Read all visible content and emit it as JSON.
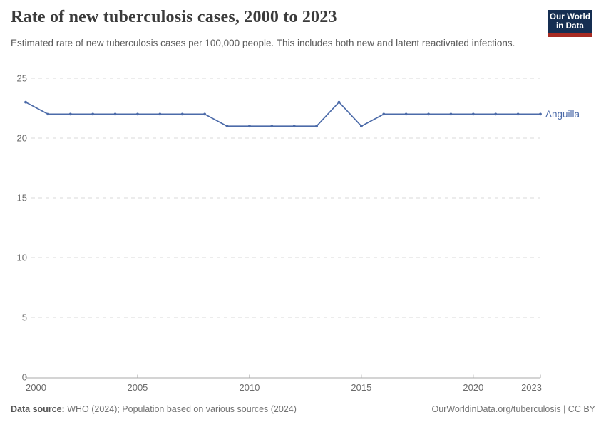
{
  "header": {
    "title": "Rate of new tuberculosis cases, 2000 to 2023",
    "subtitle": "Estimated rate of new tuberculosis cases per 100,000 people. This includes both new and latent reactivated infections.",
    "logo": {
      "line1": "Our World",
      "line2": "in Data"
    }
  },
  "chart_data": {
    "type": "line",
    "title": "Rate of new tuberculosis cases, 2000 to 2023",
    "xlabel": "",
    "ylabel": "",
    "x": [
      2000,
      2001,
      2002,
      2003,
      2004,
      2005,
      2006,
      2007,
      2008,
      2009,
      2010,
      2011,
      2012,
      2013,
      2014,
      2015,
      2016,
      2017,
      2018,
      2019,
      2020,
      2021,
      2022,
      2023
    ],
    "series": [
      {
        "name": "Anguilla",
        "values": [
          23,
          22,
          22,
          22,
          22,
          22,
          22,
          22,
          22,
          21,
          21,
          21,
          21,
          21,
          23,
          21,
          22,
          22,
          22,
          22,
          22,
          22,
          22,
          22
        ]
      }
    ],
    "xlim": [
      2000,
      2023
    ],
    "ylim": [
      0,
      25
    ],
    "x_ticks": [
      2000,
      2005,
      2010,
      2015,
      2020,
      2023
    ],
    "y_ticks": [
      0,
      5,
      10,
      15,
      20,
      25
    ],
    "grid": "horizontal-dashed",
    "legend": "line-end-label",
    "entity_label": "Anguilla"
  },
  "colors": {
    "line": "#4C6BA9",
    "grid": "#d9d9d9",
    "axis": "#a8a8a8",
    "tick_label": "#6b6b6b",
    "entity_label": "#4C6BA9",
    "logo_navy": "#152e52",
    "logo_red": "#a82b23"
  },
  "footer": {
    "source_label": "Data source:",
    "source_text": " WHO (2024); Population based on various sources (2024)",
    "link_text": "OurWorldinData.org/tuberculosis | CC BY"
  }
}
